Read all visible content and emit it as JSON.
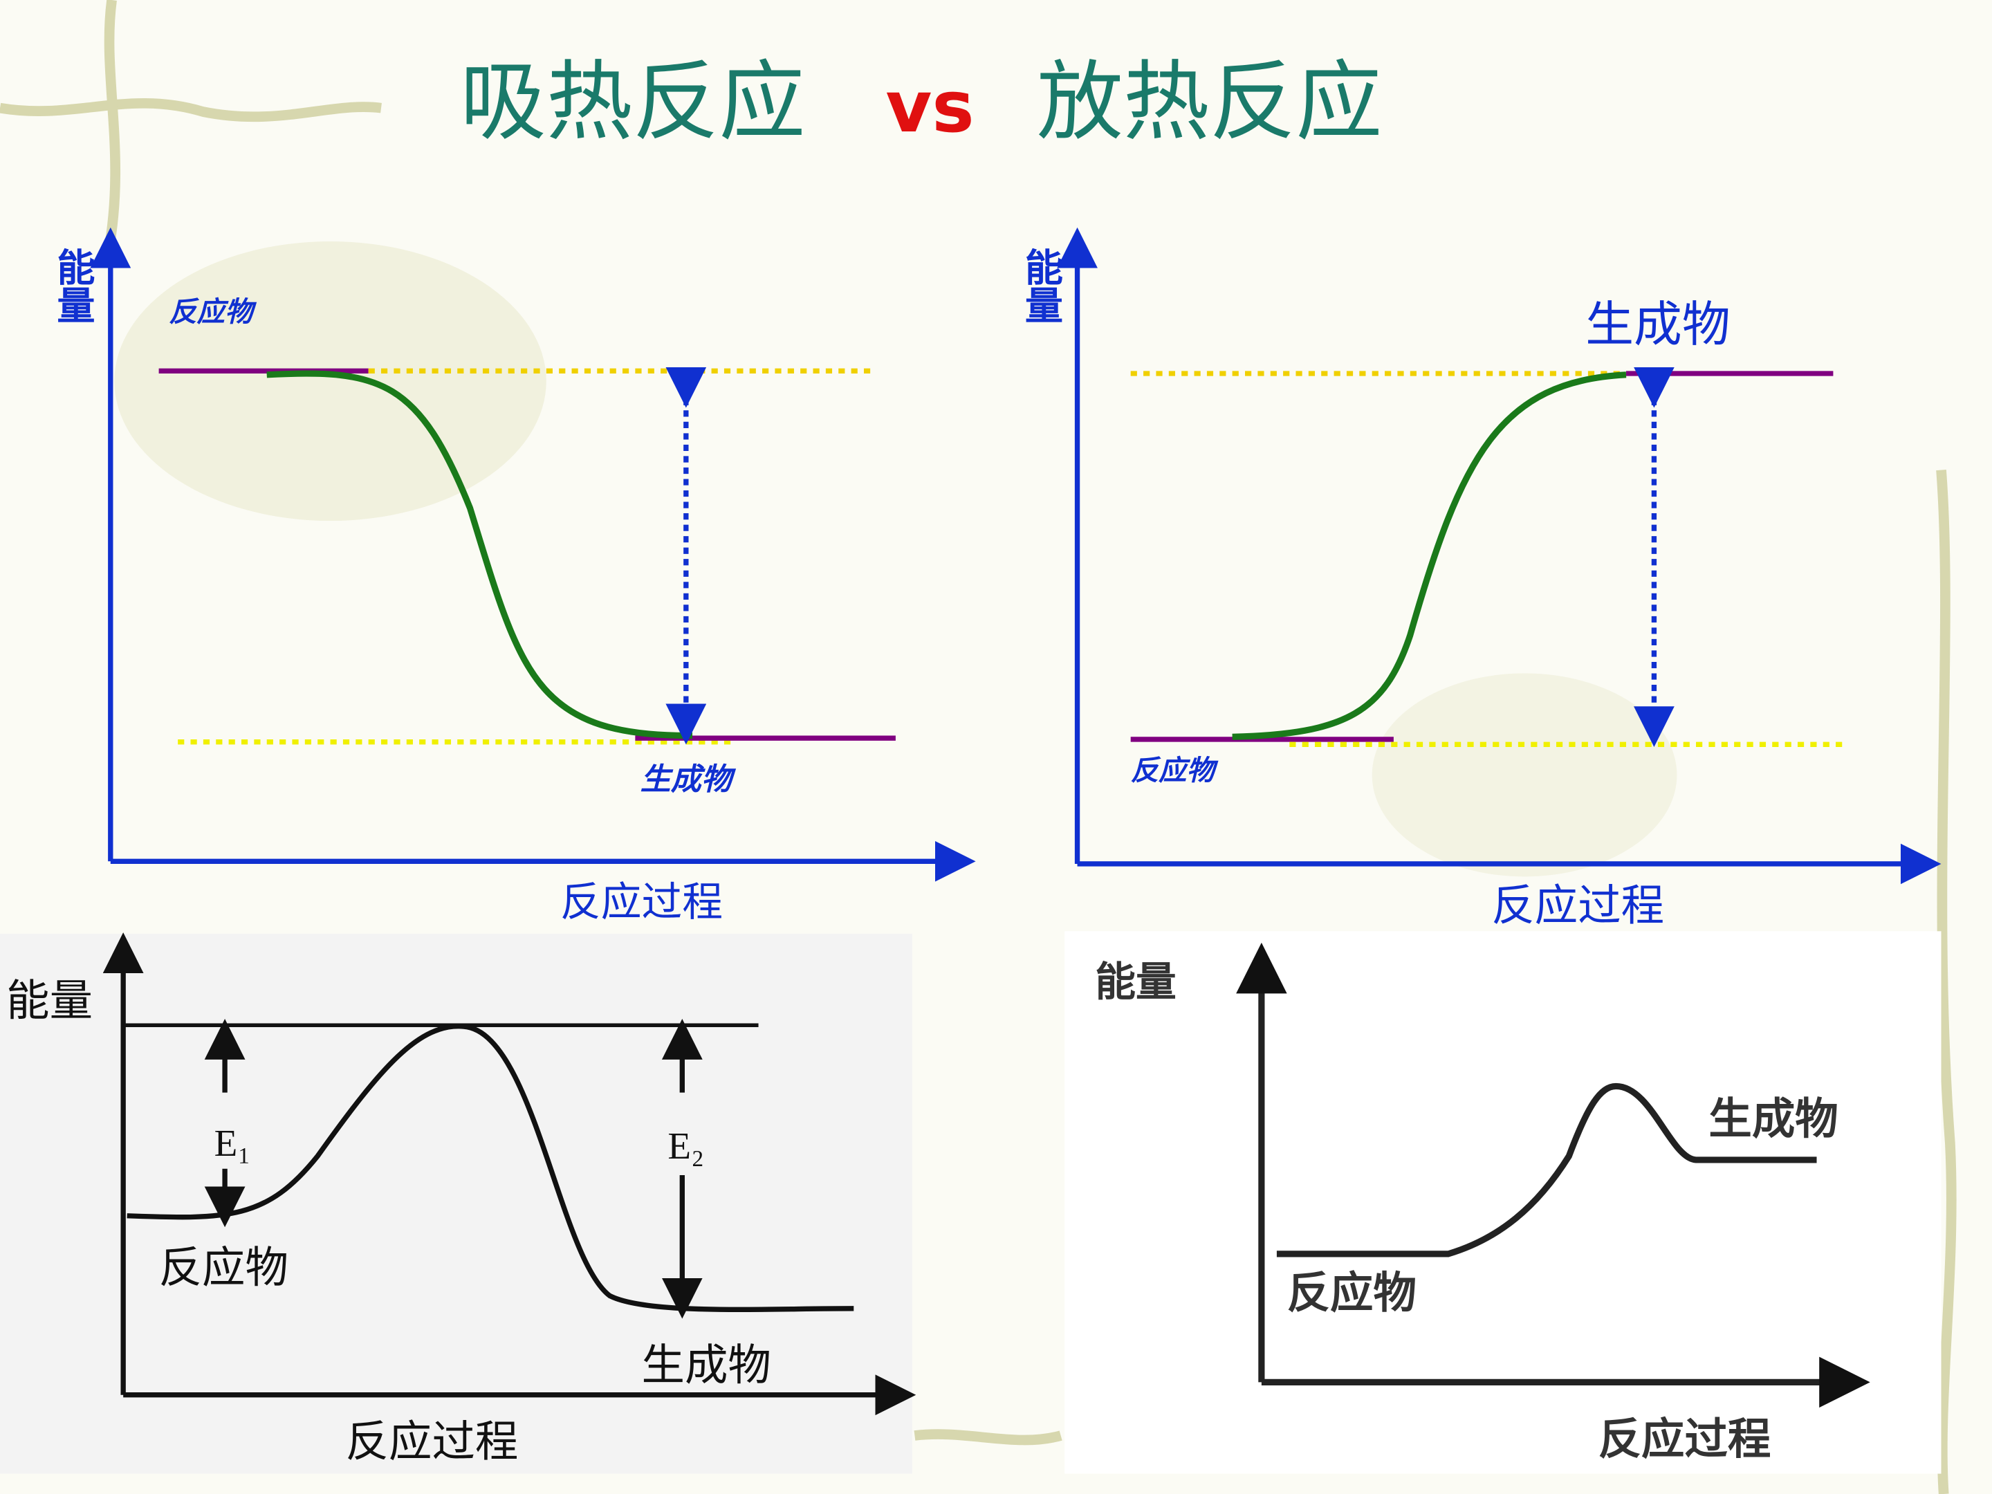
{
  "title": {
    "left": "吸热反应",
    "vs": "vs",
    "right": "放热反应"
  },
  "panels": [
    {
      "y_axis": "能量",
      "reactant": "反应物",
      "product": "生成物",
      "x_axis": "反应过程"
    },
    {
      "y_axis": "能量",
      "product": "生成物",
      "reactant": "反应物",
      "x_axis": "反应过程"
    },
    {
      "y_axis": "能量",
      "e1": "E₁",
      "e2": "E₂",
      "reactant": "反应物",
      "product": "生成物",
      "x_axis": "反应过程"
    },
    {
      "y_axis": "能量",
      "product": "生成物",
      "reactant": "反应物",
      "x_axis": "反应过程"
    }
  ]
}
